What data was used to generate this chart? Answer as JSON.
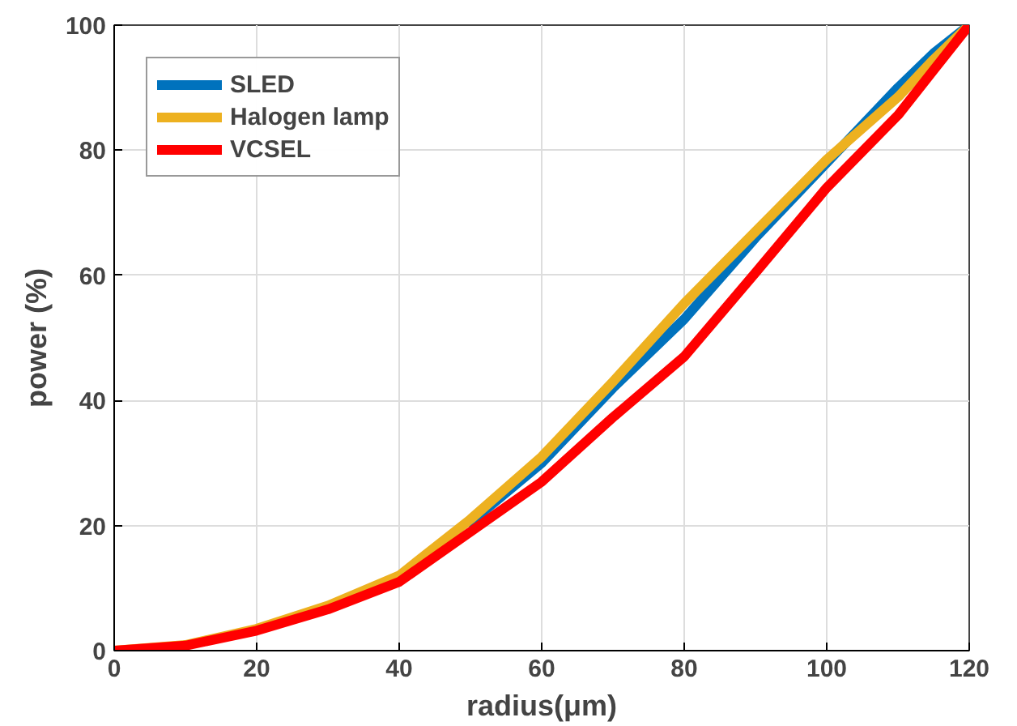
{
  "chart_data": {
    "type": "line",
    "xlabel": "radius(μm)",
    "ylabel": "power (%)",
    "x": [
      0,
      10,
      20,
      30,
      40,
      50,
      60,
      70,
      80,
      90,
      100,
      110,
      115,
      120
    ],
    "series": [
      {
        "name": "SLED",
        "color": "#0072bd",
        "values": [
          null,
          null,
          null,
          null,
          null,
          20.5,
          30,
          42,
          53,
          66,
          78,
          90,
          95.5,
          100
        ]
      },
      {
        "name": "Halogen lamp",
        "color": "#edb120",
        "values": [
          0,
          0.9,
          3.5,
          7.2,
          12,
          21,
          31,
          43,
          55.5,
          67,
          78.5,
          88.5,
          94.5,
          100
        ]
      },
      {
        "name": "VCSEL",
        "color": "#ff0000",
        "values": [
          0,
          0.8,
          3.2,
          6.6,
          11,
          19,
          27,
          37.3,
          47,
          60.4,
          74,
          85.6,
          92.8,
          100
        ]
      }
    ],
    "xlim": [
      0,
      120
    ],
    "ylim": [
      0,
      100
    ],
    "xticks": [
      0,
      20,
      40,
      60,
      80,
      100,
      120
    ],
    "yticks": [
      0,
      20,
      40,
      60,
      80,
      100
    ],
    "grid": true,
    "legend": "top left",
    "marker": "none",
    "line_style": "solid"
  }
}
